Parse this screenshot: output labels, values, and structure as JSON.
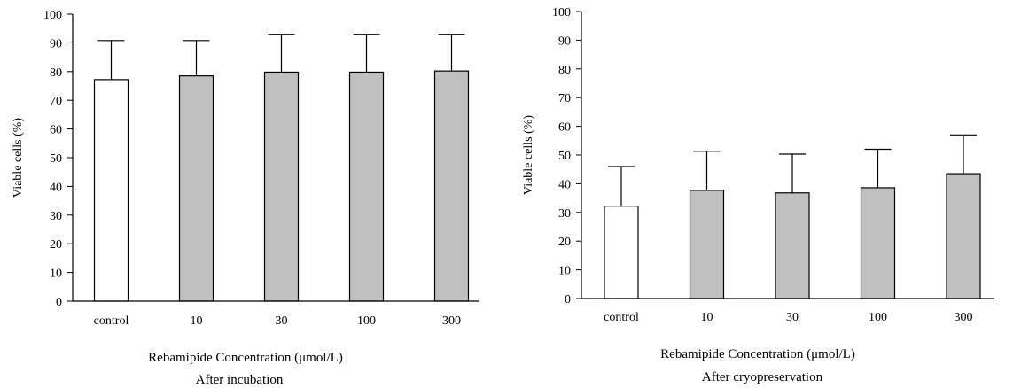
{
  "chart_data": [
    {
      "type": "bar",
      "categories": [
        "control",
        "10",
        "30",
        "100",
        "300"
      ],
      "values": [
        77.2,
        78.5,
        79.8,
        79.8,
        80.2
      ],
      "error_upper": [
        90.8,
        90.8,
        93.0,
        93.0,
        93.0
      ],
      "bar_colors": [
        "#ffffff",
        "#c0c0c0",
        "#c0c0c0",
        "#c0c0c0",
        "#c0c0c0"
      ],
      "xlabel": "Rebamipide Concentration (μmol/L)",
      "ylabel": "Viable cells (%)",
      "caption": "After incubation",
      "ylim": [
        0,
        100
      ],
      "yticks": [
        0,
        10,
        20,
        30,
        40,
        50,
        60,
        70,
        80,
        90,
        100
      ],
      "grid": false
    },
    {
      "type": "bar",
      "categories": [
        "control",
        "10",
        "30",
        "100",
        "300"
      ],
      "values": [
        32.2,
        37.7,
        36.8,
        38.6,
        43.5
      ],
      "error_upper": [
        46.0,
        51.3,
        50.3,
        52.0,
        57.0
      ],
      "bar_colors": [
        "#ffffff",
        "#c0c0c0",
        "#c0c0c0",
        "#c0c0c0",
        "#c0c0c0"
      ],
      "xlabel": "Rebamipide Concentration (μmol/L)",
      "ylabel": "Viable cells (%)",
      "caption": "After cryopreservation",
      "ylim": [
        0,
        100
      ],
      "yticks": [
        0,
        10,
        20,
        30,
        40,
        50,
        60,
        70,
        80,
        90,
        100
      ],
      "grid": false
    }
  ]
}
